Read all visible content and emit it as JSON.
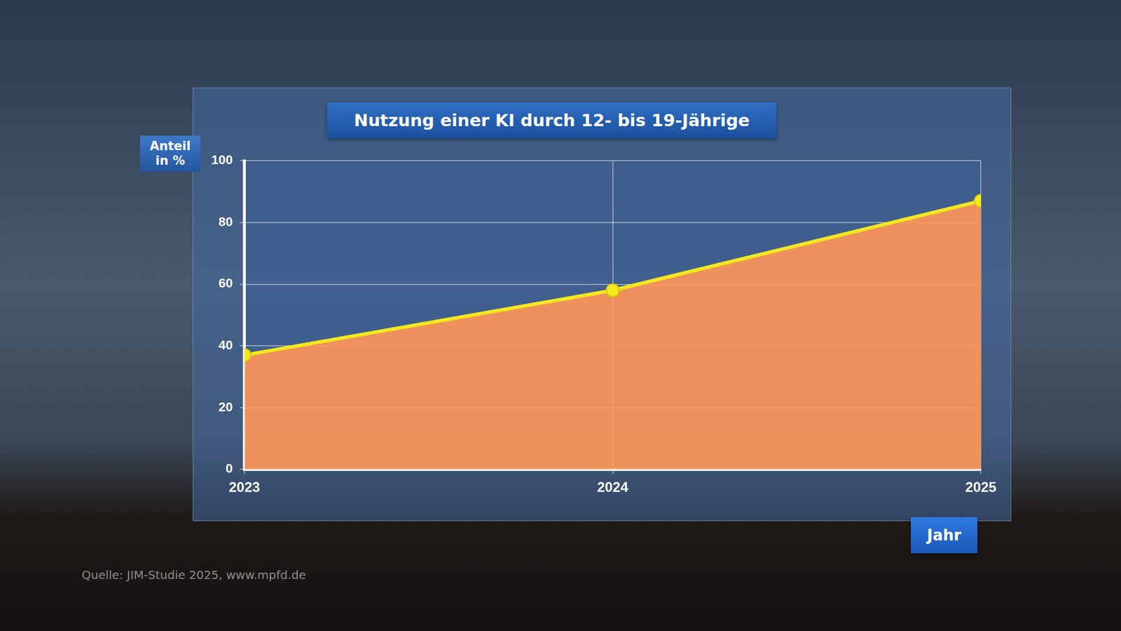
{
  "chart_data": {
    "type": "area",
    "title": "Nutzung einer KI durch 12- bis 19-Jährige",
    "y_label": "Anteil in %",
    "x_label": "Jahr",
    "source": "Quelle: JIM-Studie 2025, www.mpfd.de",
    "categories": [
      "2023",
      "2024",
      "2025"
    ],
    "values": [
      37,
      58,
      87
    ],
    "color": "#f5e81c",
    "marker": "circle",
    "ylim": [
      0,
      100
    ],
    "yticks": [
      0,
      20,
      40,
      60,
      80,
      100
    ],
    "grid": true,
    "legend": false
  }
}
